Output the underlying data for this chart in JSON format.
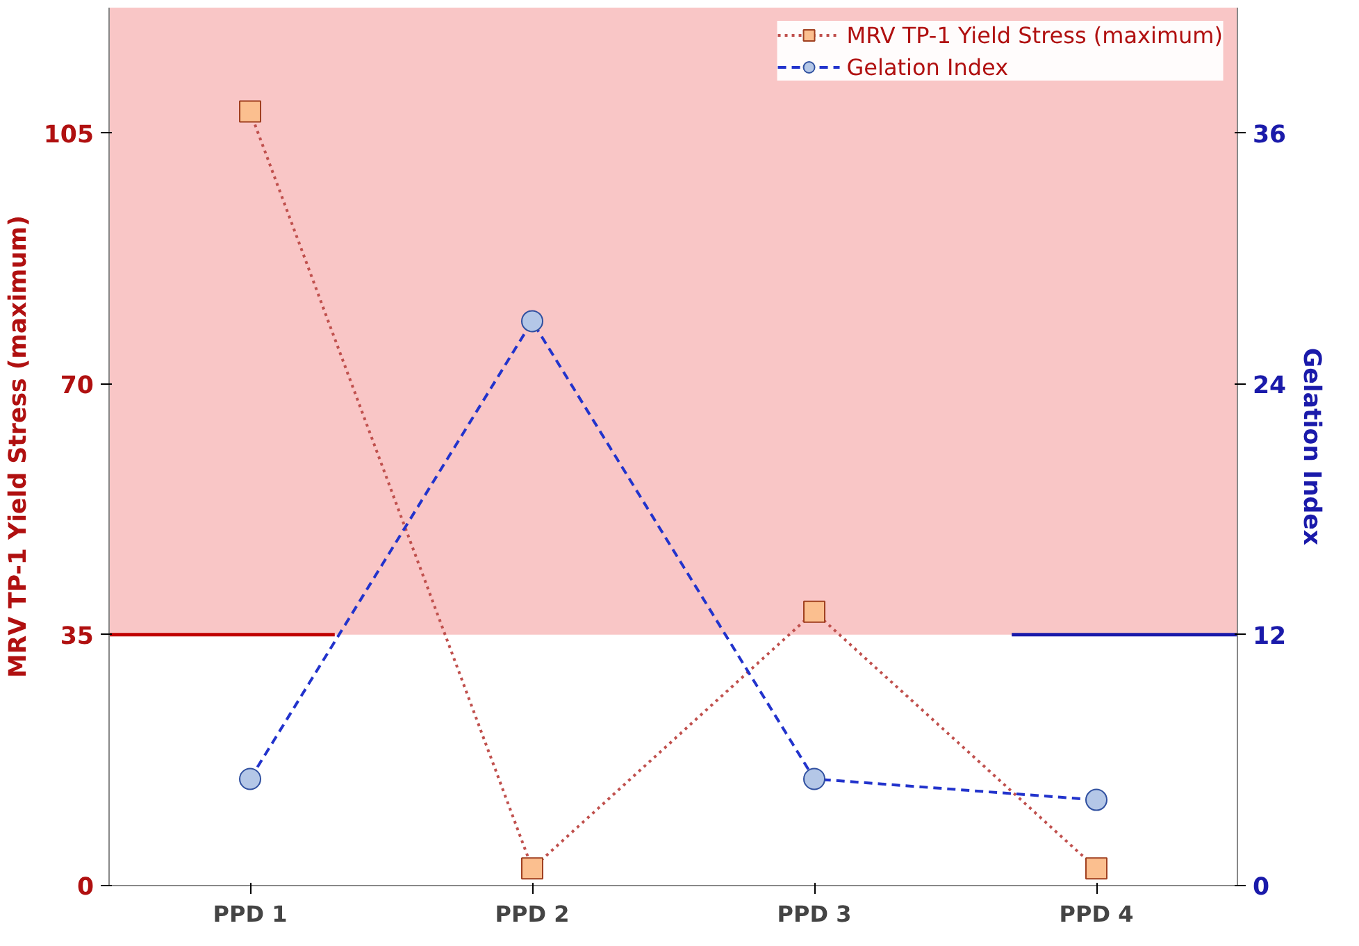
{
  "chart_data": {
    "type": "line",
    "categories": [
      "PPD 1",
      "PPD 2",
      "PPD 3",
      "PPD 4"
    ],
    "ylabel": "MRV TP-1 Yield Stress (maximum)",
    "y2label": "Gelation Index",
    "ylim": [
      0,
      122.5
    ],
    "yticks": [
      0,
      35,
      70,
      105
    ],
    "y2lim": [
      0,
      42
    ],
    "y2ticks": [
      0,
      12,
      24,
      36
    ],
    "series": [
      {
        "name": "MRV TP-1 Yield Stress (maximum)",
        "color": "#c0504d",
        "values": [
          108,
          2.4,
          38.2,
          2.4
        ],
        "marker": "square",
        "line_style": "dotted"
      },
      {
        "name": "Gelation Index",
        "color": "#2233cc",
        "values": [
          5.1,
          27,
          5.1,
          4.1
        ],
        "marker": "circle",
        "line_style": "dashed",
        "axis": "y2"
      }
    ],
    "bands": [
      {
        "axis": "y",
        "from": 35,
        "to": 122.5,
        "color": "#f28080"
      }
    ],
    "ref_lines": [
      {
        "axis": "y",
        "value": 35,
        "color": "#c00000"
      },
      {
        "axis": "y2",
        "value": 12,
        "color": "#1a1aaa"
      }
    ],
    "legend": "top right"
  }
}
